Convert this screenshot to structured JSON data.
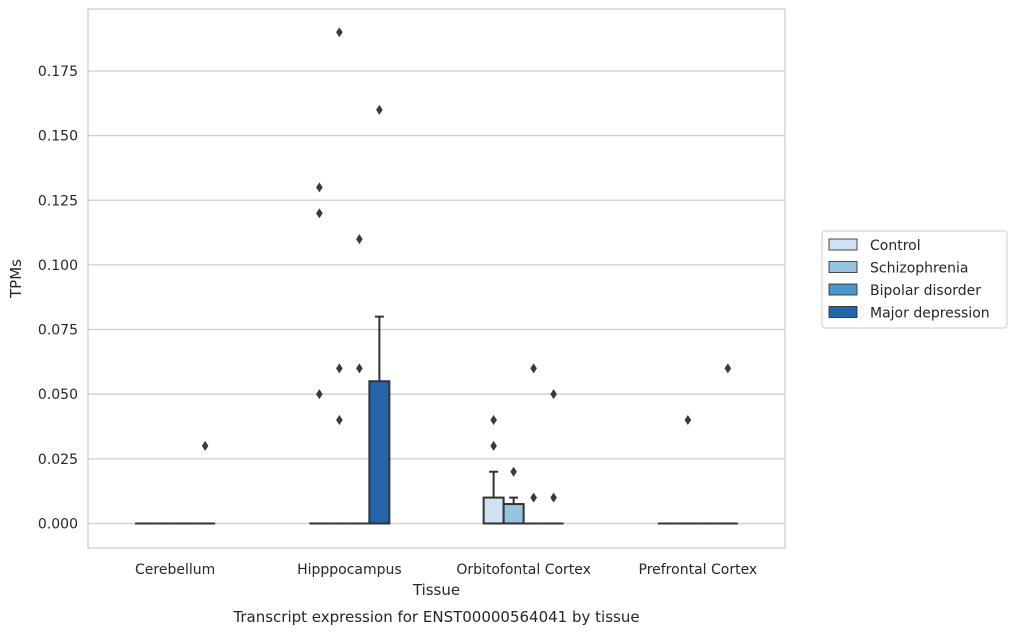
{
  "chart_data": {
    "type": "box",
    "caption": "Transcript expression for ENST00000564041 by tissue",
    "xlabel": "Tissue",
    "ylabel": "TPMs",
    "ylim": [
      -0.0095,
      0.199
    ],
    "yticks": [
      0.0,
      0.025,
      0.05,
      0.075,
      0.1,
      0.125,
      0.15,
      0.175
    ],
    "ytick_labels": [
      "0.000",
      "0.025",
      "0.050",
      "0.075",
      "0.100",
      "0.125",
      "0.150",
      "0.175"
    ],
    "grid": true,
    "legend_position": "right",
    "categories": [
      "Cerebellum",
      "Hipppocampus",
      "Orbitofontal Cortex",
      "Prefrontal Cortex"
    ],
    "series": [
      {
        "name": "Control",
        "color": "#d0e1f2",
        "boxes": [
          {
            "q1": 0,
            "median": 0,
            "q3": 0,
            "whisker_low": 0,
            "whisker_high": 0,
            "outliers": []
          },
          {
            "q1": 0,
            "median": 0,
            "q3": 0,
            "whisker_low": 0,
            "whisker_high": 0,
            "outliers": [
              0.13,
              0.12,
              0.05
            ]
          },
          {
            "q1": 0,
            "median": 0,
            "q3": 0.01,
            "whisker_low": 0,
            "whisker_high": 0.02,
            "outliers": [
              0.04,
              0.03
            ]
          },
          {
            "q1": 0,
            "median": 0,
            "q3": 0,
            "whisker_low": 0,
            "whisker_high": 0,
            "outliers": []
          }
        ]
      },
      {
        "name": "Schizophrenia",
        "color": "#94c4df",
        "boxes": [
          {
            "q1": 0,
            "median": 0,
            "q3": 0,
            "whisker_low": 0,
            "whisker_high": 0,
            "outliers": []
          },
          {
            "q1": 0,
            "median": 0,
            "q3": 0,
            "whisker_low": 0,
            "whisker_high": 0,
            "outliers": [
              0.19,
              0.06,
              0.04
            ]
          },
          {
            "q1": 0,
            "median": 0,
            "q3": 0.0075,
            "whisker_low": 0,
            "whisker_high": 0.01,
            "outliers": [
              0.02
            ]
          },
          {
            "q1": 0,
            "median": 0,
            "q3": 0,
            "whisker_low": 0,
            "whisker_high": 0,
            "outliers": [
              0.04
            ]
          }
        ]
      },
      {
        "name": "Bipolar disorder",
        "color": "#4a98c9",
        "boxes": [
          {
            "q1": 0,
            "median": 0,
            "q3": 0,
            "whisker_low": 0,
            "whisker_high": 0,
            "outliers": []
          },
          {
            "q1": 0,
            "median": 0,
            "q3": 0,
            "whisker_low": 0,
            "whisker_high": 0,
            "outliers": [
              0.11,
              0.06
            ]
          },
          {
            "q1": 0,
            "median": 0,
            "q3": 0,
            "whisker_low": 0,
            "whisker_high": 0,
            "outliers": [
              0.06,
              0.01
            ]
          },
          {
            "q1": 0,
            "median": 0,
            "q3": 0,
            "whisker_low": 0,
            "whisker_high": 0,
            "outliers": []
          }
        ]
      },
      {
        "name": "Major depression",
        "color": "#2464ab",
        "boxes": [
          {
            "q1": 0,
            "median": 0,
            "q3": 0,
            "whisker_low": 0,
            "whisker_high": 0,
            "outliers": [
              0.03
            ]
          },
          {
            "q1": 0,
            "median": 0,
            "q3": 0.055,
            "whisker_low": 0,
            "whisker_high": 0.08,
            "outliers": [
              0.16
            ]
          },
          {
            "q1": 0,
            "median": 0,
            "q3": 0,
            "whisker_low": 0,
            "whisker_high": 0,
            "outliers": [
              0.05,
              0.01
            ]
          },
          {
            "q1": 0,
            "median": 0,
            "q3": 0,
            "whisker_low": 0,
            "whisker_high": 0,
            "outliers": [
              0.06
            ]
          }
        ]
      }
    ]
  }
}
